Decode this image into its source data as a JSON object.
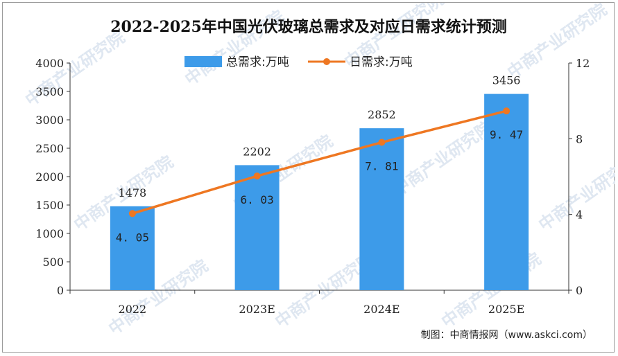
{
  "chart_data": {
    "type": "bar",
    "title": "2022-2025年中国光伏玻璃总需求及对应日需求统计预测",
    "categories": [
      "2022",
      "2023E",
      "2024E",
      "2025E"
    ],
    "series": [
      {
        "name": "总需求:万吨",
        "type": "bar",
        "axis": "left",
        "values": [
          1478,
          2202,
          2852,
          3456
        ],
        "labels": [
          "1478",
          "2202",
          "2852",
          "3456"
        ],
        "color": "#3d9be9"
      },
      {
        "name": "日需求:万吨",
        "type": "line",
        "axis": "right",
        "values": [
          4.05,
          6.03,
          7.81,
          9.47
        ],
        "labels": [
          "4. 05",
          "6. 03",
          "7. 81",
          "9. 47"
        ],
        "color": "#ee7722"
      }
    ],
    "y_left": {
      "min": 0,
      "max": 4000,
      "ticks": [
        0,
        500,
        1000,
        1500,
        2000,
        2500,
        3000,
        3500,
        4000
      ]
    },
    "y_right": {
      "min": 0,
      "max": 12,
      "ticks": [
        0,
        4,
        8,
        12
      ]
    },
    "legend_position": "top-center",
    "grid": false
  },
  "source": "制图：中商情报网（www.askci.com）",
  "watermark": "中商产业研究院"
}
